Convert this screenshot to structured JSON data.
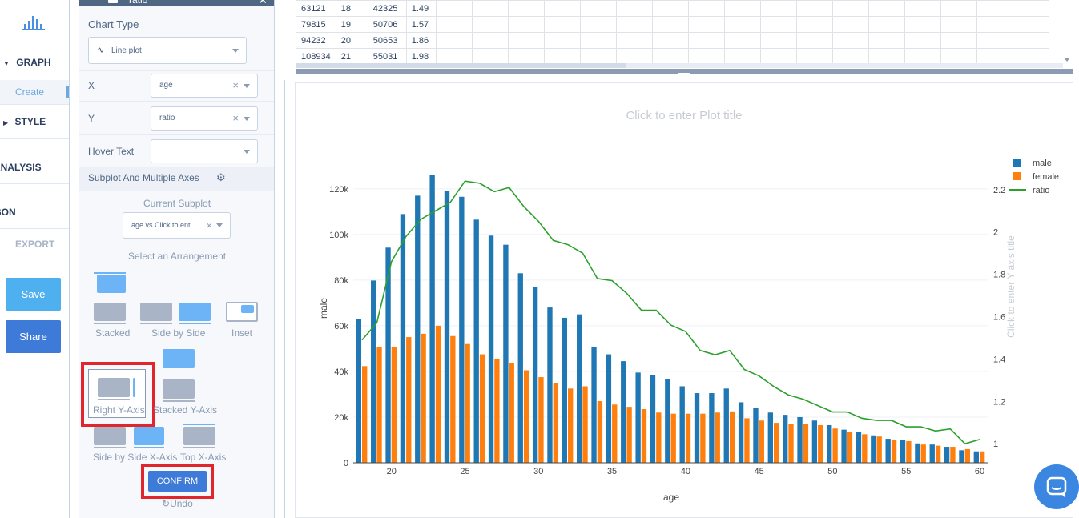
{
  "nav": {
    "sections": [
      "GRAPH",
      "STYLE",
      "ANALYSIS",
      "JSON",
      "EXPORT"
    ],
    "create_label": "Create",
    "save_label": "Save",
    "share_label": "Share",
    "colors": {
      "save": "#4fb0ef",
      "share": "#3e7bd8"
    }
  },
  "panel": {
    "trace_name": "ratio",
    "chart_type_label": "Chart Type",
    "chart_type_value": "Line plot",
    "x_label": "X",
    "x_value": "age",
    "y_label": "Y",
    "y_value": "ratio",
    "hover_label": "Hover Text",
    "hover_value": "",
    "subplot_header": "Subplot And Multiple Axes",
    "current_subplot_label": "Current Subplot",
    "current_subplot_value": "age vs Click to ent...",
    "select_arrangement_label": "Select an Arrangement",
    "arrangements": [
      "Stacked",
      "Side by Side",
      "Inset",
      "Right Y-Axis",
      "Stacked Y-Axis",
      "Side by Side X-Axis",
      "Top X-Axis"
    ],
    "confirm_label": "CONFIRM",
    "undo_label": "Undo"
  },
  "table": {
    "rows": [
      [
        "63121",
        "18",
        "42325",
        "1.49"
      ],
      [
        "79815",
        "19",
        "50706",
        "1.57"
      ],
      [
        "94232",
        "20",
        "50653",
        "1.86"
      ],
      [
        "108934",
        "21",
        "55031",
        "1.98"
      ]
    ]
  },
  "chart_data": {
    "type": "bar",
    "title_placeholder": "Click to enter Plot title",
    "xlabel": "age",
    "ylabel": "male",
    "y2label_placeholder": "Click to enter Y axis title",
    "x": [
      18,
      19,
      20,
      21,
      22,
      23,
      24,
      25,
      26,
      27,
      28,
      29,
      30,
      31,
      32,
      33,
      34,
      35,
      36,
      37,
      38,
      39,
      40,
      41,
      42,
      43,
      44,
      45,
      46,
      47,
      48,
      49,
      50,
      51,
      52,
      53,
      54,
      55,
      56,
      57,
      58,
      59,
      60
    ],
    "xlim": [
      17.4,
      60.6
    ],
    "xticks": [
      "20",
      "25",
      "30",
      "35",
      "40",
      "45",
      "50",
      "55",
      "60"
    ],
    "ylim": [
      0,
      128000
    ],
    "yticks": [
      "0",
      "20k",
      "40k",
      "60k",
      "80k",
      "100k",
      "120k"
    ],
    "y2lim": [
      0.91,
      2.29
    ],
    "y2ticks": [
      "1",
      "1.2",
      "1.4",
      "1.6",
      "1.8",
      "2",
      "2.2"
    ],
    "legend_position": "top-right",
    "series": [
      {
        "name": "male",
        "color": "#1f77b4",
        "values": [
          63121,
          79815,
          94232,
          108934,
          117000,
          126000,
          119000,
          116500,
          106500,
          99500,
          95500,
          83000,
          77000,
          68000,
          63500,
          65000,
          50500,
          47500,
          44500,
          39500,
          38500,
          36500,
          33500,
          30500,
          30500,
          32500,
          26500,
          24000,
          22000,
          21000,
          20000,
          18500,
          16500,
          14500,
          13500,
          12000,
          10500,
          10000,
          8500,
          8000,
          7000,
          5500,
          5000
        ]
      },
      {
        "name": "female",
        "color": "#ff7f0e",
        "values": [
          42325,
          50706,
          50653,
          55031,
          56500,
          60000,
          55500,
          52000,
          47500,
          45500,
          43500,
          40500,
          37500,
          35000,
          32500,
          33500,
          27000,
          25500,
          24500,
          23500,
          22000,
          21500,
          21500,
          21500,
          22000,
          22500,
          19500,
          18500,
          17500,
          17000,
          17000,
          16500,
          15000,
          13500,
          12500,
          11500,
          10000,
          9500,
          8000,
          7500,
          7000,
          6000,
          5000
        ]
      },
      {
        "name": "ratio",
        "color": "#2ca02c",
        "axis": "y2",
        "values": [
          1.49,
          1.57,
          1.86,
          1.98,
          2.06,
          2.1,
          2.14,
          2.24,
          2.23,
          2.19,
          2.21,
          2.12,
          2.05,
          1.96,
          1.94,
          1.9,
          1.78,
          1.77,
          1.71,
          1.63,
          1.63,
          1.56,
          1.53,
          1.44,
          1.42,
          1.44,
          1.35,
          1.32,
          1.27,
          1.23,
          1.21,
          1.18,
          1.15,
          1.15,
          1.12,
          1.11,
          1.11,
          1.08,
          1.08,
          1.06,
          1.07,
          1.0,
          1.02
        ]
      }
    ]
  }
}
